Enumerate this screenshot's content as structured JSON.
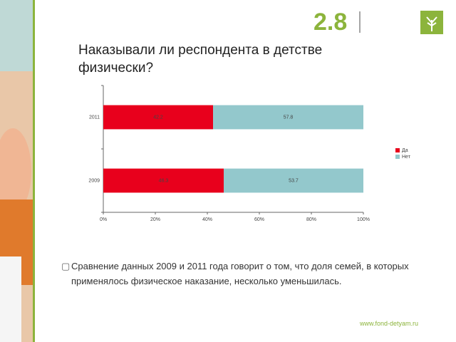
{
  "slide": {
    "number": "2.8",
    "bullet": "Сравнение данных 2009 и 2011 года говорит о том, что доля семей, в которых применялось физическое наказание, несколько уменьшилась.",
    "url": "www.fond-detyam.ru"
  },
  "chart_data": {
    "type": "bar",
    "orientation": "horizontal",
    "stacked": true,
    "title": "Наказывали ли респондента в детстве физически?",
    "categories": [
      "2011",
      "2009"
    ],
    "series": [
      {
        "name": "Да",
        "color": "#e8001c",
        "values": [
          42.2,
          46.3
        ]
      },
      {
        "name": "Нет",
        "color": "#93c8cc",
        "values": [
          57.8,
          53.7
        ]
      }
    ],
    "xlim": [
      0,
      100
    ],
    "xticks": [
      {
        "value": 0,
        "label": "0%"
      },
      {
        "value": 20,
        "label": "20%"
      },
      {
        "value": 40,
        "label": "40%"
      },
      {
        "value": 60,
        "label": "60%"
      },
      {
        "value": 80,
        "label": "80%"
      },
      {
        "value": 100,
        "label": "100%"
      }
    ],
    "legend": "right"
  }
}
